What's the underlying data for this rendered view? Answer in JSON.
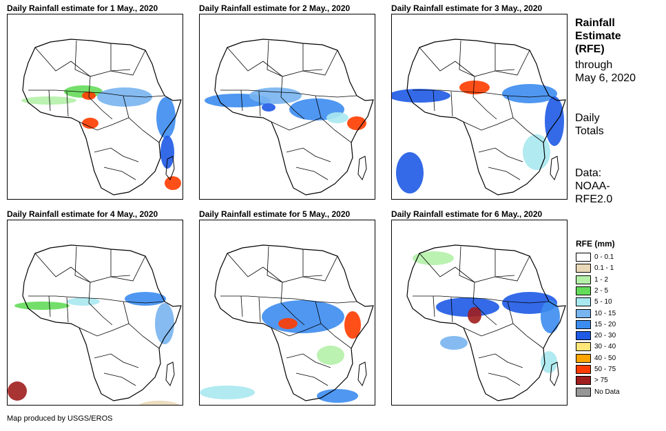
{
  "panels": [
    {
      "title": "Daily Rainfall estimate for 1 May., 2020"
    },
    {
      "title": "Daily Rainfall estimate for 2 May., 2020"
    },
    {
      "title": "Daily Rainfall estimate for 3 May., 2020"
    },
    {
      "title": "Daily Rainfall estimate for 4 May., 2020"
    },
    {
      "title": "Daily Rainfall estimate for 5 May., 2020"
    },
    {
      "title": "Daily Rainfall estimate for 6 May., 2020"
    }
  ],
  "side": {
    "title_line1": "Rainfall",
    "title_line2": "Estimate",
    "title_line3": "(RFE)",
    "through_line1": "through",
    "through_line2": "May 6, 2020",
    "totals_line1": "Daily",
    "totals_line2": "Totals",
    "source_line1": "Data:",
    "source_line2": "NOAA-",
    "source_line3": "RFE2.0"
  },
  "legend": {
    "title": "RFE (mm)",
    "items": [
      {
        "label": "0 - 0.1",
        "color": "#ffffff"
      },
      {
        "label": "0.1 - 1",
        "color": "#e8d8b8"
      },
      {
        "label": "1 - 2",
        "color": "#b4f0a8"
      },
      {
        "label": "2 - 5",
        "color": "#64dc5a"
      },
      {
        "label": "5 - 10",
        "color": "#a8e8f0"
      },
      {
        "label": "10 - 15",
        "color": "#78b4f0"
      },
      {
        "label": "15 - 20",
        "color": "#3c8cf0"
      },
      {
        "label": "20 - 30",
        "color": "#1e5ae6"
      },
      {
        "label": "30 - 40",
        "color": "#ffe678"
      },
      {
        "label": "40 - 50",
        "color": "#ffa500"
      },
      {
        "label": "50 - 75",
        "color": "#ff3c00"
      },
      {
        "label": "> 75",
        "color": "#a01e1e"
      },
      {
        "label": "No Data",
        "color": "#969696"
      }
    ]
  },
  "credit": "Map produced by USGS/EROS"
}
